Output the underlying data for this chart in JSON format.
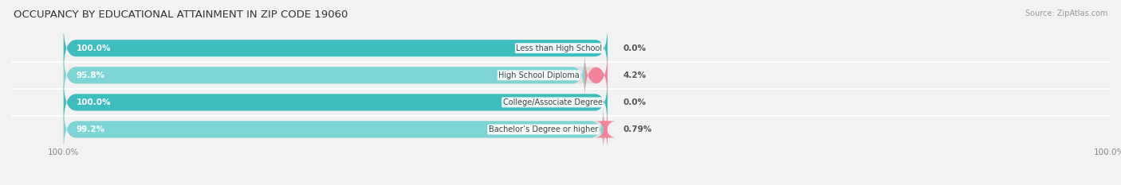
{
  "title": "OCCUPANCY BY EDUCATIONAL ATTAINMENT IN ZIP CODE 19060",
  "source": "Source: ZipAtlas.com",
  "categories": [
    "Less than High School",
    "High School Diploma",
    "College/Associate Degree",
    "Bachelor’s Degree or higher"
  ],
  "owner_values": [
    100.0,
    95.8,
    100.0,
    99.2
  ],
  "renter_values": [
    0.0,
    4.2,
    0.0,
    0.79
  ],
  "owner_labels": [
    "100.0%",
    "95.8%",
    "100.0%",
    "99.2%"
  ],
  "renter_labels": [
    "0.0%",
    "4.2%",
    "0.0%",
    "0.79%"
  ],
  "owner_color": "#3DBDBD",
  "owner_color_light": "#7DD4D4",
  "renter_color": "#F4829A",
  "bg_color": "#F2F2F2",
  "bar_bg_color": "#E0E0E0",
  "title_fontsize": 9.5,
  "label_fontsize": 7.5,
  "axis_fontsize": 7.5,
  "source_fontsize": 7,
  "bar_height": 0.62,
  "total_width": 100.0,
  "x_left_label": "100.0%",
  "x_right_label": "100.0%"
}
